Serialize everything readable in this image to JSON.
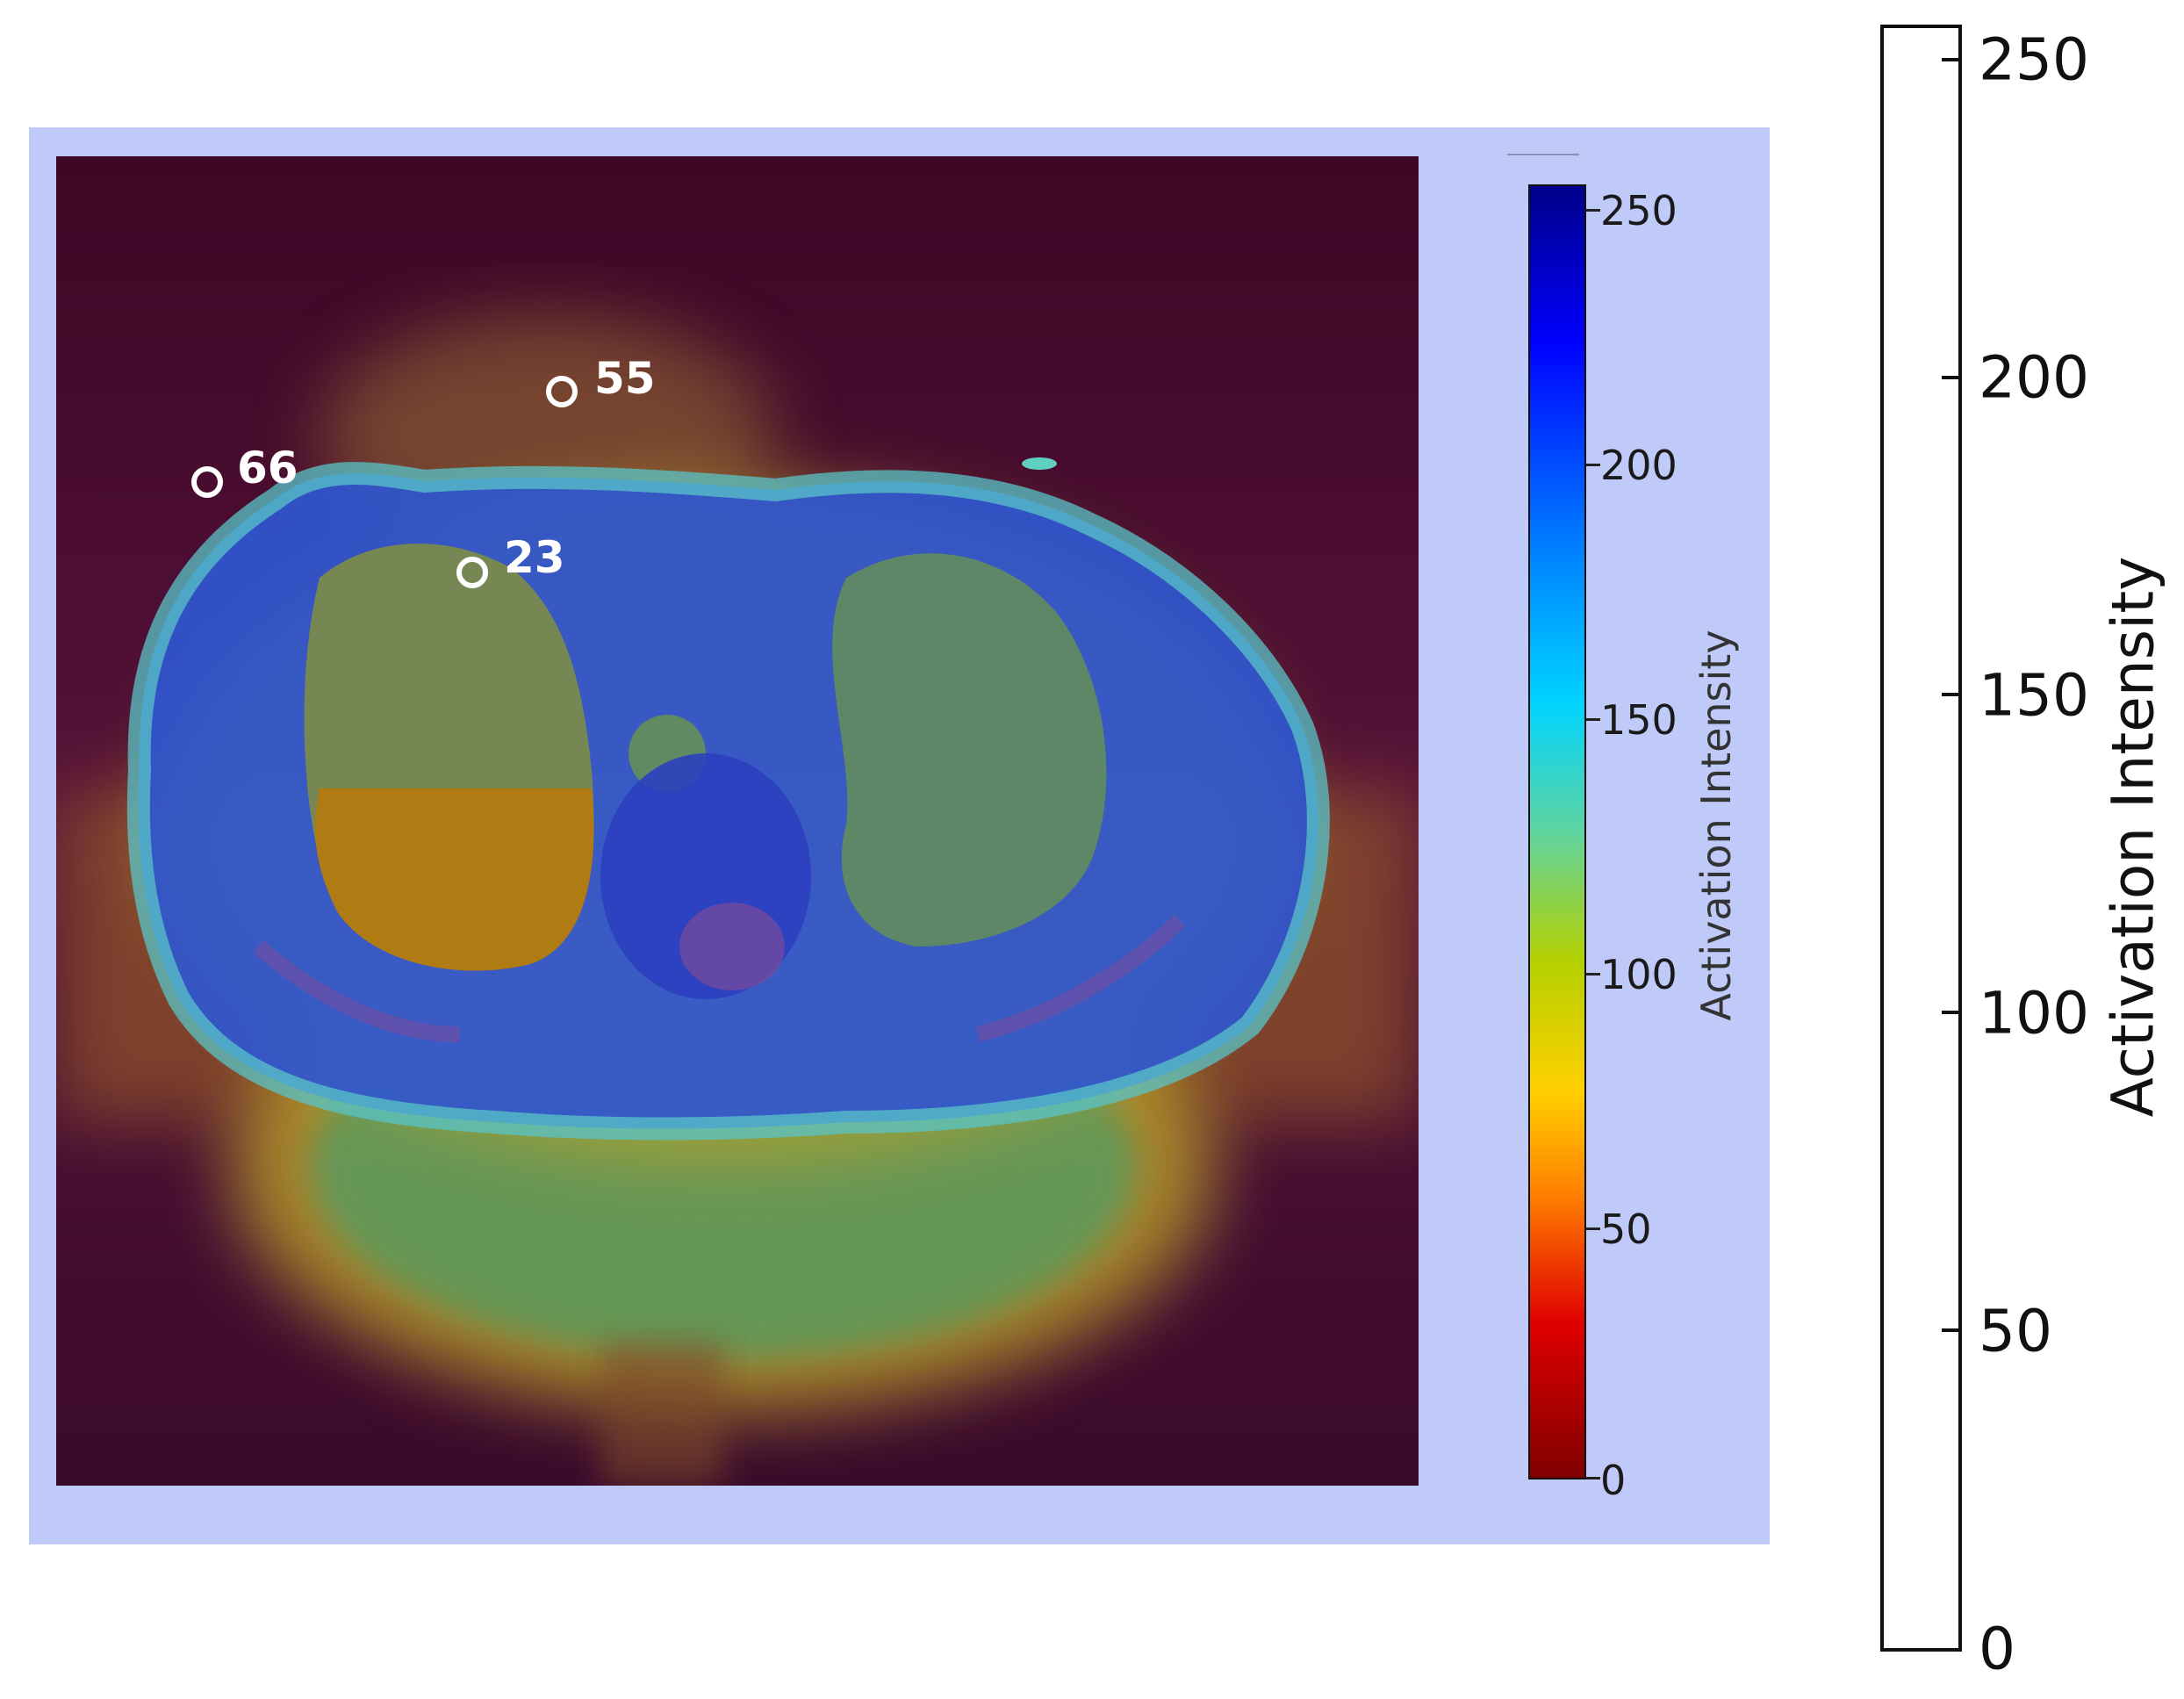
{
  "markers": [
    {
      "label": "55"
    },
    {
      "label": "66"
    },
    {
      "label": "23"
    }
  ],
  "inner_colorbar": {
    "title": "Activation Intensity",
    "ticks": [
      "250",
      "200",
      "150",
      "100",
      "50",
      "0"
    ],
    "colormap": "jet-reversed"
  },
  "outer_colorbar": {
    "title": "Activation Intensity",
    "ticks": [
      "250",
      "200",
      "150",
      "100",
      "50",
      "0"
    ]
  },
  "colors": {
    "panel_background": "#c0caf8",
    "marker": "#ffffff"
  }
}
